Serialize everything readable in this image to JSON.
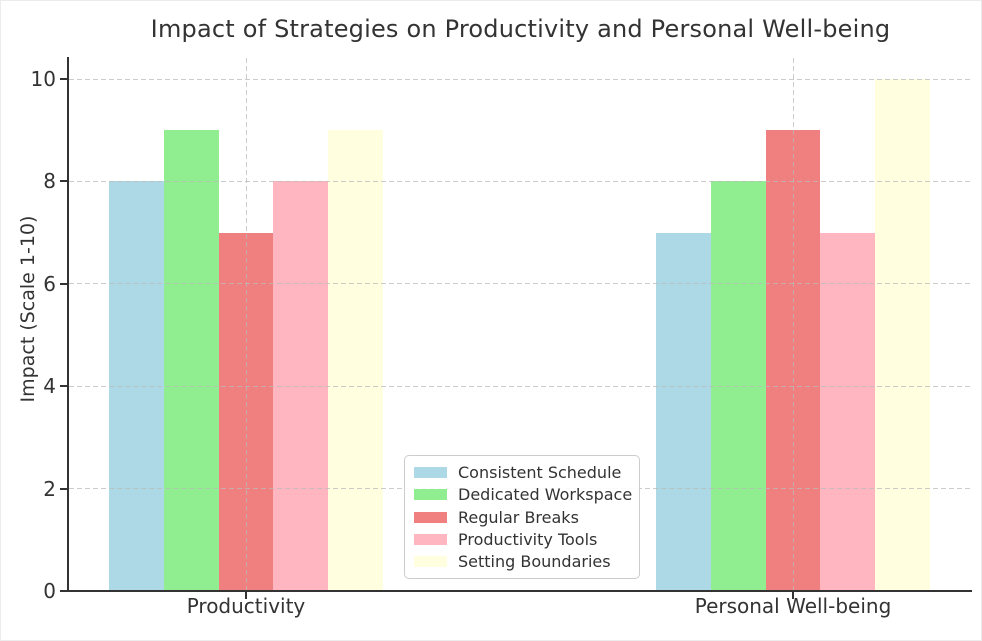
{
  "figure": {
    "background_color": "#ffffff",
    "text_color": "#333333",
    "spine_color": "#333333",
    "gridline_color": "#cccccc",
    "legend_border_color": "#cccccc"
  },
  "chart_data": {
    "type": "bar",
    "title": "Impact of Strategies on Productivity and Personal Well-being",
    "xlabel": "",
    "ylabel": "Impact (Scale 1-10)",
    "categories": [
      "Productivity",
      "Personal Well-being"
    ],
    "series": [
      {
        "name": "Consistent Schedule",
        "color": "#ADD8E6",
        "values": [
          8,
          7
        ]
      },
      {
        "name": "Dedicated Workspace",
        "color": "#90EE90",
        "values": [
          9,
          8
        ]
      },
      {
        "name": "Regular Breaks",
        "color": "#F08080",
        "values": [
          7,
          9
        ]
      },
      {
        "name": "Productivity Tools",
        "color": "#FFB6C1",
        "values": [
          8,
          7
        ]
      },
      {
        "name": "Setting Boundaries",
        "color": "#FFFFE0",
        "values": [
          9,
          10
        ]
      }
    ],
    "yticks": [
      0,
      2,
      4,
      6,
      8,
      10
    ],
    "ylim": [
      0,
      10.41
    ],
    "grid": true,
    "grid_style": "dashed",
    "grid_above_bars": true,
    "legend_position": "lower center"
  }
}
